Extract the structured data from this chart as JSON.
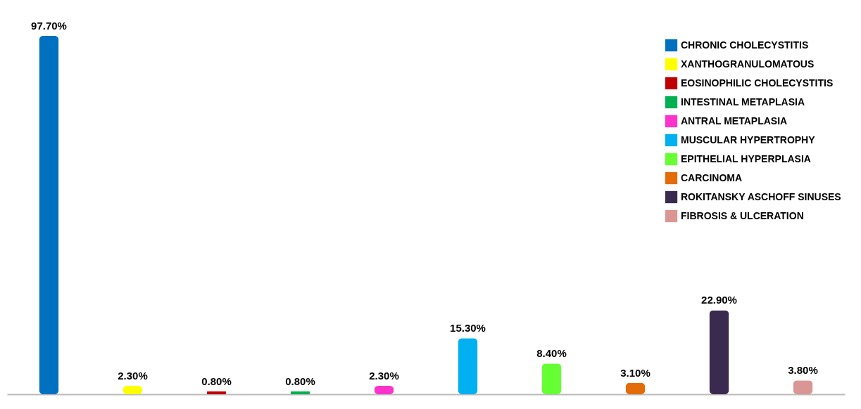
{
  "chart_data": {
    "type": "bar",
    "categories": [
      null,
      null,
      null,
      null,
      null,
      null,
      null,
      null,
      null,
      null
    ],
    "series": [
      {
        "name": "CHRONIC CHOLECYSTITIS",
        "color": "#0070c0",
        "values": [
          97.7,
          null,
          null,
          null,
          null,
          null,
          null,
          null,
          null,
          null
        ],
        "value_labels": [
          "97.70%",
          null,
          null,
          null,
          null,
          null,
          null,
          null,
          null,
          null
        ]
      },
      {
        "name": "XANTHOGRANULOMATOUS",
        "color": "#ffff00",
        "values": [
          null,
          2.3,
          null,
          null,
          null,
          null,
          null,
          null,
          null,
          null
        ],
        "value_labels": [
          null,
          "2.30%",
          null,
          null,
          null,
          null,
          null,
          null,
          null,
          null
        ]
      },
      {
        "name": "EOSINOPHILIC CHOLECYSTITIS",
        "color": "#c00000",
        "values": [
          null,
          null,
          0.8,
          null,
          null,
          null,
          null,
          null,
          null,
          null
        ],
        "value_labels": [
          null,
          null,
          "0.80%",
          null,
          null,
          null,
          null,
          null,
          null,
          null
        ]
      },
      {
        "name": "INTESTINAL METAPLASIA",
        "color": "#00b050",
        "values": [
          null,
          null,
          null,
          0.8,
          null,
          null,
          null,
          null,
          null,
          null
        ],
        "value_labels": [
          null,
          null,
          null,
          "0.80%",
          null,
          null,
          null,
          null,
          null,
          null
        ]
      },
      {
        "name": "ANTRAL METAPLASIA",
        "color": "#ff33cc",
        "values": [
          null,
          null,
          null,
          null,
          2.3,
          null,
          null,
          null,
          null,
          null
        ],
        "value_labels": [
          null,
          null,
          null,
          null,
          "2.30%",
          null,
          null,
          null,
          null,
          null
        ]
      },
      {
        "name": "MUSCULAR HYPERTROPHY",
        "color": "#00b0f0",
        "values": [
          null,
          null,
          null,
          null,
          null,
          15.3,
          null,
          null,
          null,
          null
        ],
        "value_labels": [
          null,
          null,
          null,
          null,
          null,
          "15.30%",
          null,
          null,
          null,
          null
        ]
      },
      {
        "name": "EPITHELIAL HYPERPLASIA",
        "color": "#66ff33",
        "values": [
          null,
          null,
          null,
          null,
          null,
          null,
          8.4,
          null,
          null,
          null
        ],
        "value_labels": [
          null,
          null,
          null,
          null,
          null,
          null,
          "8.40%",
          null,
          null,
          null
        ]
      },
      {
        "name": "CARCINOMA",
        "color": "#e36c09",
        "values": [
          null,
          null,
          null,
          null,
          null,
          null,
          null,
          3.1,
          null,
          null
        ],
        "value_labels": [
          null,
          null,
          null,
          null,
          null,
          null,
          null,
          "3.10%",
          null,
          null
        ]
      },
      {
        "name": "ROKITANSKY ASCHOFF SINUSES",
        "color": "#3b2a4f",
        "values": [
          null,
          null,
          null,
          null,
          null,
          null,
          null,
          null,
          22.9,
          null
        ],
        "value_labels": [
          null,
          null,
          null,
          null,
          null,
          null,
          null,
          null,
          "22.90%",
          null
        ]
      },
      {
        "name": "FIBROSIS & ULCERATION",
        "color": "#da9694",
        "values": [
          null,
          null,
          null,
          null,
          null,
          null,
          null,
          null,
          null,
          3.8
        ],
        "value_labels": [
          null,
          null,
          null,
          null,
          null,
          null,
          null,
          null,
          null,
          "3.80%"
        ]
      }
    ],
    "stacked": true,
    "legend": "top right",
    "tick_labels": false
  }
}
